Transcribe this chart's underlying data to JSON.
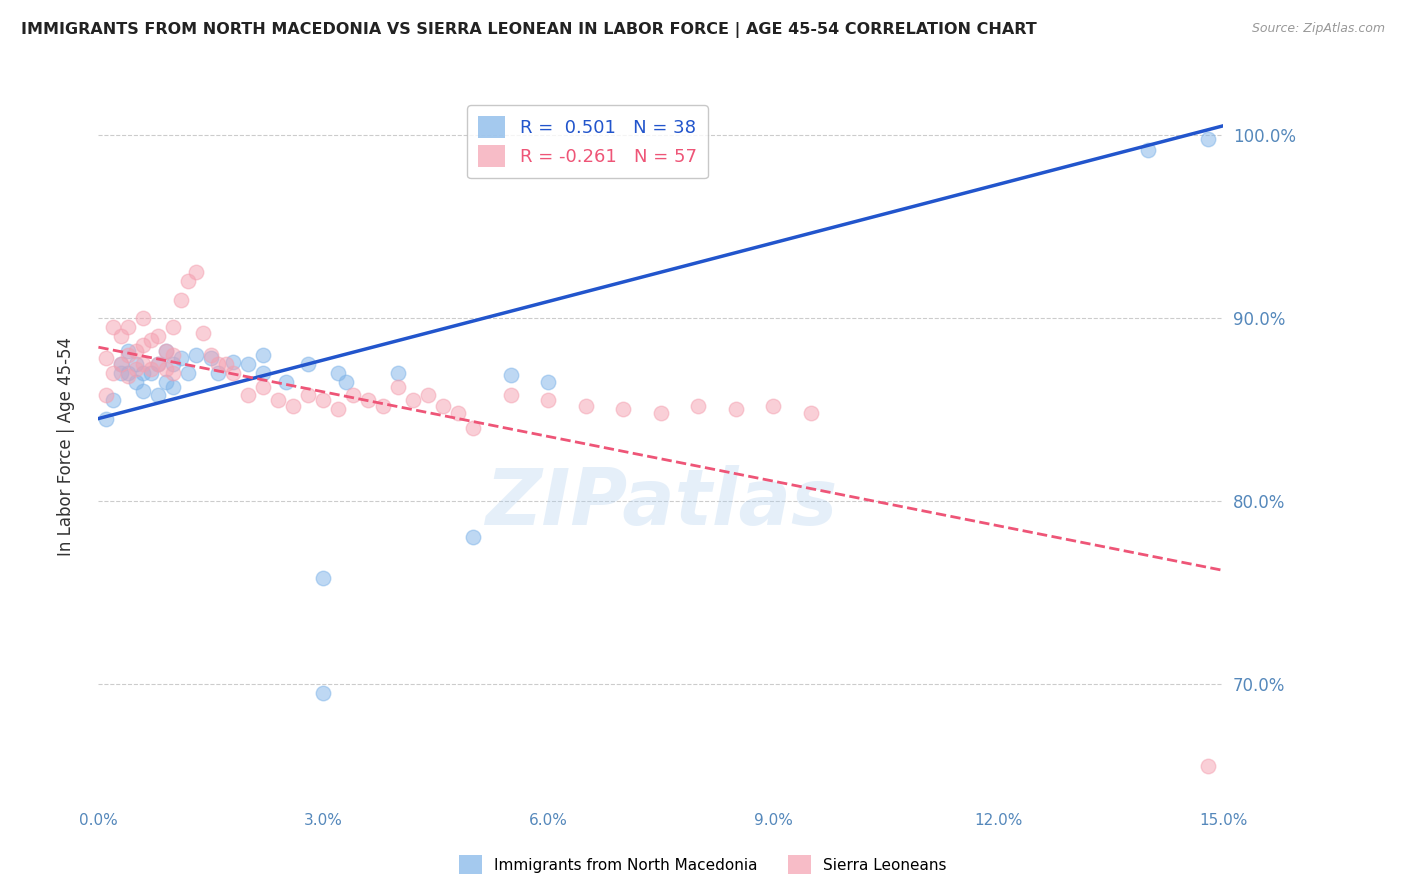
{
  "title": "IMMIGRANTS FROM NORTH MACEDONIA VS SIERRA LEONEAN IN LABOR FORCE | AGE 45-54 CORRELATION CHART",
  "source": "Source: ZipAtlas.com",
  "ylabel": "In Labor Force | Age 45-54",
  "xlim": [
    0.0,
    0.15
  ],
  "ylim": [
    0.635,
    1.025
  ],
  "yticks": [
    0.7,
    0.8,
    0.9,
    1.0
  ],
  "ytick_labels": [
    "70.0%",
    "80.0%",
    "90.0%",
    "100.0%"
  ],
  "xticks": [
    0.0,
    0.03,
    0.06,
    0.09,
    0.12,
    0.15
  ],
  "xtick_labels": [
    "0.0%",
    "3.0%",
    "6.0%",
    "9.0%",
    "12.0%",
    "15.0%"
  ],
  "blue_color": "#7EB3E8",
  "pink_color": "#F4A0B0",
  "blue_line_color": "#2255CC",
  "pink_line_color": "#EE5577",
  "blue_R": 0.501,
  "blue_N": 38,
  "pink_R": -0.261,
  "pink_N": 57,
  "watermark": "ZIPatlas",
  "legend_label_blue": "Immigrants from North Macedonia",
  "legend_label_pink": "Sierra Leoneans",
  "blue_scatter_x": [
    0.001,
    0.002,
    0.003,
    0.003,
    0.004,
    0.004,
    0.005,
    0.005,
    0.006,
    0.006,
    0.007,
    0.008,
    0.008,
    0.009,
    0.009,
    0.01,
    0.01,
    0.011,
    0.012,
    0.013,
    0.015,
    0.016,
    0.018,
    0.02,
    0.022,
    0.022,
    0.025,
    0.028,
    0.03,
    0.033,
    0.04,
    0.05,
    0.055,
    0.06,
    0.03,
    0.14,
    0.148,
    0.032
  ],
  "blue_scatter_y": [
    0.845,
    0.855,
    0.87,
    0.875,
    0.87,
    0.882,
    0.875,
    0.865,
    0.86,
    0.87,
    0.87,
    0.858,
    0.875,
    0.865,
    0.882,
    0.862,
    0.875,
    0.878,
    0.87,
    0.88,
    0.878,
    0.87,
    0.876,
    0.875,
    0.87,
    0.88,
    0.865,
    0.875,
    0.758,
    0.865,
    0.87,
    0.78,
    0.869,
    0.865,
    0.695,
    0.992,
    0.998,
    0.87
  ],
  "pink_scatter_x": [
    0.001,
    0.001,
    0.002,
    0.002,
    0.003,
    0.003,
    0.004,
    0.004,
    0.004,
    0.005,
    0.005,
    0.006,
    0.006,
    0.006,
    0.007,
    0.007,
    0.008,
    0.008,
    0.009,
    0.009,
    0.01,
    0.01,
    0.01,
    0.011,
    0.012,
    0.013,
    0.014,
    0.015,
    0.016,
    0.017,
    0.018,
    0.02,
    0.022,
    0.024,
    0.026,
    0.028,
    0.03,
    0.032,
    0.034,
    0.036,
    0.038,
    0.04,
    0.042,
    0.044,
    0.046,
    0.048,
    0.05,
    0.055,
    0.06,
    0.065,
    0.07,
    0.075,
    0.08,
    0.085,
    0.09,
    0.095,
    0.148
  ],
  "pink_scatter_y": [
    0.858,
    0.878,
    0.87,
    0.895,
    0.875,
    0.89,
    0.868,
    0.88,
    0.895,
    0.872,
    0.882,
    0.875,
    0.885,
    0.9,
    0.872,
    0.888,
    0.875,
    0.89,
    0.872,
    0.882,
    0.87,
    0.88,
    0.895,
    0.91,
    0.92,
    0.925,
    0.892,
    0.88,
    0.875,
    0.875,
    0.87,
    0.858,
    0.862,
    0.855,
    0.852,
    0.858,
    0.855,
    0.85,
    0.858,
    0.855,
    0.852,
    0.862,
    0.855,
    0.858,
    0.852,
    0.848,
    0.84,
    0.858,
    0.855,
    0.852,
    0.85,
    0.848,
    0.852,
    0.85,
    0.852,
    0.848,
    0.655
  ],
  "blue_trend_x0": 0.0,
  "blue_trend_y0": 0.845,
  "blue_trend_x1": 0.15,
  "blue_trend_y1": 1.005,
  "pink_trend_x0": 0.0,
  "pink_trend_y0": 0.884,
  "pink_trend_x1": 0.15,
  "pink_trend_y1": 0.762
}
